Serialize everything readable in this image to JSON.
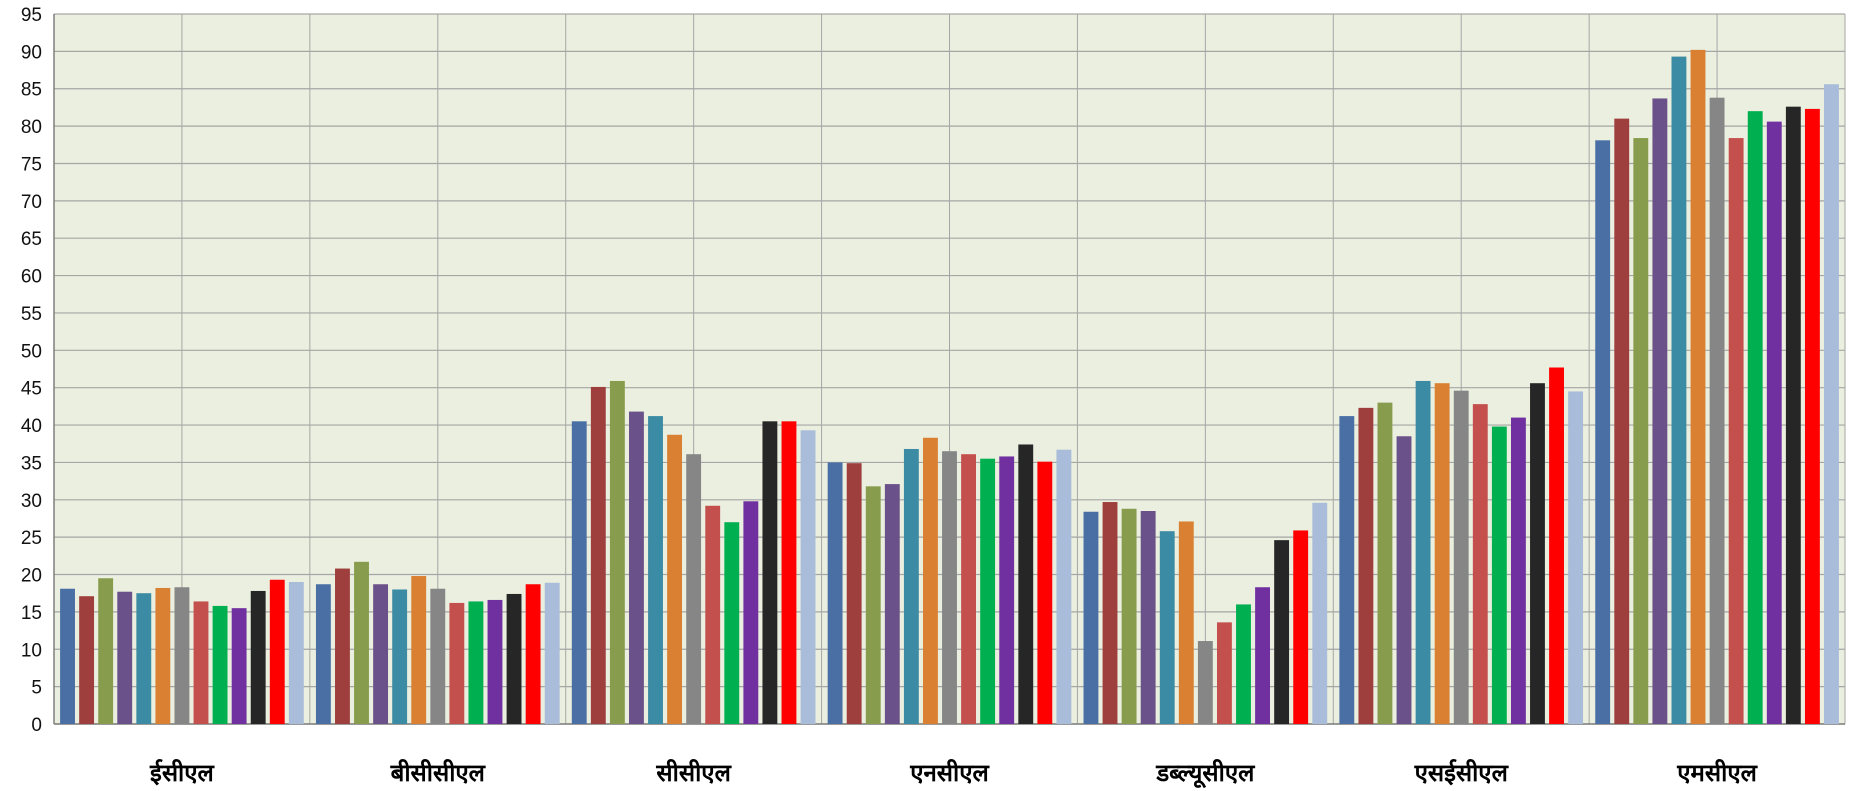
{
  "chart_data": {
    "type": "bar",
    "title": "",
    "xlabel": "",
    "ylabel": "",
    "ylim": [
      0,
      95
    ],
    "y_ticks": [
      "0",
      "5",
      "10",
      "15",
      "20",
      "25",
      "30",
      "35",
      "40",
      "45",
      "50",
      "55",
      "60",
      "65",
      "70",
      "75",
      "80",
      "85",
      "90",
      "95"
    ],
    "grid": true,
    "legend": "none",
    "categories": [
      "ईसीएल",
      "बीसीसीएल",
      "सीसीएल",
      "एनसीएल",
      "डब्ल्यूसीएल",
      "एसईसीएल",
      "एमसीएल"
    ],
    "series_colors": [
      "#4a6fa5",
      "#9e3f3d",
      "#879c4c",
      "#6a5189",
      "#3c8ba4",
      "#d98032",
      "#868686",
      "#c4504d",
      "#00b050",
      "#7030a0",
      "#262626",
      "#ff0000",
      "#a9bcd9"
    ],
    "series": [
      {
        "values": [
          18.1,
          18.7,
          40.5,
          35.0,
          28.4,
          41.2,
          78.1
        ]
      },
      {
        "values": [
          17.1,
          20.8,
          45.1,
          34.9,
          29.7,
          42.3,
          81.0
        ]
      },
      {
        "values": [
          19.5,
          21.7,
          45.9,
          31.8,
          28.8,
          43.0,
          78.4
        ]
      },
      {
        "values": [
          17.7,
          18.7,
          41.8,
          32.1,
          28.5,
          38.5,
          83.7
        ]
      },
      {
        "values": [
          17.5,
          18.0,
          41.2,
          36.8,
          25.8,
          45.9,
          89.3
        ]
      },
      {
        "values": [
          18.2,
          19.8,
          38.7,
          38.3,
          27.1,
          45.6,
          90.2
        ]
      },
      {
        "values": [
          18.3,
          18.1,
          36.1,
          36.5,
          11.1,
          44.6,
          83.8
        ]
      },
      {
        "values": [
          16.4,
          16.2,
          29.2,
          36.1,
          13.6,
          42.8,
          78.4
        ]
      },
      {
        "values": [
          15.8,
          16.4,
          27.0,
          35.5,
          16.0,
          39.8,
          82.0
        ]
      },
      {
        "values": [
          15.5,
          16.6,
          29.8,
          35.8,
          18.3,
          41.0,
          80.6
        ]
      },
      {
        "values": [
          17.8,
          17.4,
          40.5,
          37.4,
          24.6,
          45.6,
          82.6
        ]
      },
      {
        "values": [
          19.3,
          18.7,
          40.5,
          35.1,
          25.9,
          47.7,
          82.3
        ]
      },
      {
        "values": [
          19.0,
          18.9,
          39.3,
          36.7,
          29.6,
          44.5,
          85.6
        ]
      }
    ]
  },
  "colors": {
    "plot_background": "#ebefdf",
    "gridline": "#a6a6a6",
    "axis": "#7f7f7f"
  }
}
